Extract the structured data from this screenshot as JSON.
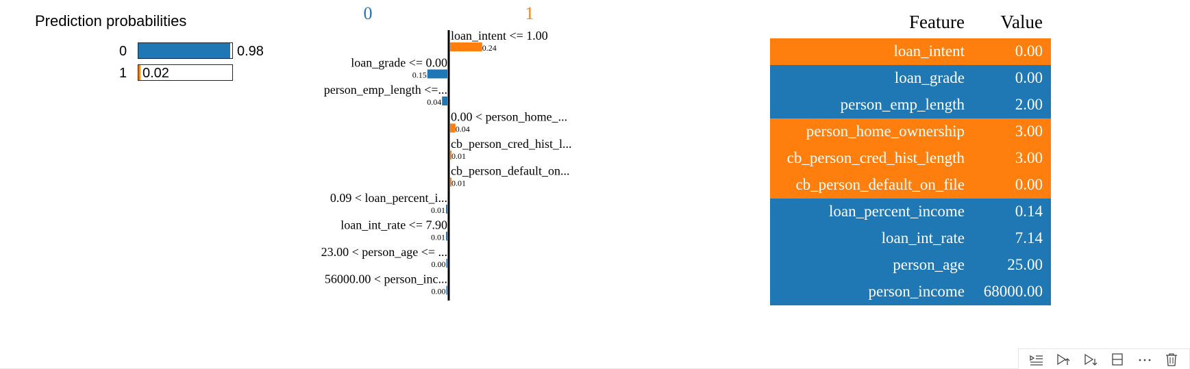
{
  "colors": {
    "blue": "#1f77b4",
    "orange": "#ff7f0e"
  },
  "prediction": {
    "title": "Prediction probabilities",
    "rows": [
      {
        "label": "0",
        "value": 0.98,
        "value_text": "0.98",
        "color": "#1f77b4"
      },
      {
        "label": "1",
        "value": 0.02,
        "value_text": "0.02",
        "color": "#ff7f0e"
      }
    ]
  },
  "chart_data": {
    "type": "bar",
    "class_left": "0",
    "class_right": "1",
    "features": [
      {
        "label": "loan_intent <= 1.00",
        "weight": 0.24,
        "weight_text": "0.24",
        "side": "1"
      },
      {
        "label": "loan_grade <= 0.00",
        "weight": 0.15,
        "weight_text": "0.15",
        "side": "0"
      },
      {
        "label": "person_emp_length <=...",
        "weight": 0.04,
        "weight_text": "0.04",
        "side": "0"
      },
      {
        "label": "0.00 < person_home_...",
        "weight": 0.04,
        "weight_text": "0.04",
        "side": "1"
      },
      {
        "label": "cb_person_cred_hist_l...",
        "weight": 0.01,
        "weight_text": "0.01",
        "side": "1"
      },
      {
        "label": "cb_person_default_on...",
        "weight": 0.01,
        "weight_text": "0.01",
        "side": "1"
      },
      {
        "label": "0.09 < loan_percent_i...",
        "weight": 0.01,
        "weight_text": "0.01",
        "side": "0"
      },
      {
        "label": "loan_int_rate <= 7.90",
        "weight": 0.01,
        "weight_text": "0.01",
        "side": "0"
      },
      {
        "label": "23.00 < person_age <= ...",
        "weight": 0.0,
        "weight_text": "0.00",
        "side": "0"
      },
      {
        "label": "56000.00 < person_inc...",
        "weight": 0.0,
        "weight_text": "0.00",
        "side": "0"
      }
    ]
  },
  "table": {
    "header_feature": "Feature",
    "header_value": "Value",
    "rows": [
      {
        "feature": "loan_intent",
        "value": "0.00",
        "color": "#ff7f0e"
      },
      {
        "feature": "loan_grade",
        "value": "0.00",
        "color": "#1f77b4"
      },
      {
        "feature": "person_emp_length",
        "value": "2.00",
        "color": "#1f77b4"
      },
      {
        "feature": "person_home_ownership",
        "value": "3.00",
        "color": "#ff7f0e"
      },
      {
        "feature": "cb_person_cred_hist_length",
        "value": "3.00",
        "color": "#ff7f0e"
      },
      {
        "feature": "cb_person_default_on_file",
        "value": "0.00",
        "color": "#ff7f0e"
      },
      {
        "feature": "loan_percent_income",
        "value": "0.14",
        "color": "#1f77b4"
      },
      {
        "feature": "loan_int_rate",
        "value": "7.14",
        "color": "#1f77b4"
      },
      {
        "feature": "person_age",
        "value": "25.00",
        "color": "#1f77b4"
      },
      {
        "feature": "person_income",
        "value": "68000.00",
        "color": "#1f77b4"
      }
    ]
  },
  "toolbar": {
    "buttons": [
      {
        "name": "run-by-line-icon"
      },
      {
        "name": "execute-above-icon"
      },
      {
        "name": "execute-below-icon"
      },
      {
        "name": "split-cell-icon"
      },
      {
        "name": "more-actions-icon"
      },
      {
        "name": "delete-cell-icon"
      }
    ]
  }
}
